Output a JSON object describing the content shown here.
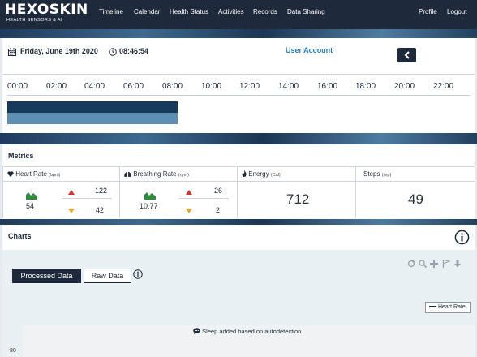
{
  "brand": {
    "name": "HEXOSKIN",
    "tagline": "HEALTH SENSORS & AI"
  },
  "nav": {
    "left": [
      "Timeline",
      "Calendar",
      "Health Status",
      "Activities",
      "Records",
      "Data Sharing"
    ],
    "right": [
      "Profile",
      "Logout"
    ]
  },
  "header": {
    "date": "Friday, June 19th 2020",
    "time": "08:46:54",
    "user_account": "User Account"
  },
  "timeline": {
    "ticks": [
      "00:00",
      "02:00",
      "04:00",
      "06:00",
      "08:00",
      "10:00",
      "12:00",
      "14:00",
      "16:00",
      "18:00",
      "20:00",
      "22:00"
    ],
    "sleep_start_hour": 0,
    "sleep_end_hour": 8.8
  },
  "metrics": {
    "title": "Metrics",
    "heart_rate": {
      "label": "Heart Rate",
      "unit": "(bpm)",
      "current": "54",
      "max": "122",
      "min": "42"
    },
    "breathing_rate": {
      "label": "Breathing Rate",
      "unit": "(rpm)",
      "current": "10.77",
      "max": "26",
      "min": "2"
    },
    "energy": {
      "label": "Energy",
      "unit": "(Cal)",
      "value": "712"
    },
    "steps": {
      "label": "Steps",
      "unit": "(rep)",
      "value": "49"
    }
  },
  "charts": {
    "title": "Charts",
    "tabs": {
      "processed": "Processed Data",
      "raw": "Raw Data"
    },
    "legend": "Heart Rate",
    "note": "Sleep added based on autodetection",
    "y_tick": "80"
  },
  "colors": {
    "nav": "#1e2a3c",
    "link": "#2b7bbd",
    "sleep_dark": "#163a5c",
    "sleep_light": "#5e8fb3"
  }
}
